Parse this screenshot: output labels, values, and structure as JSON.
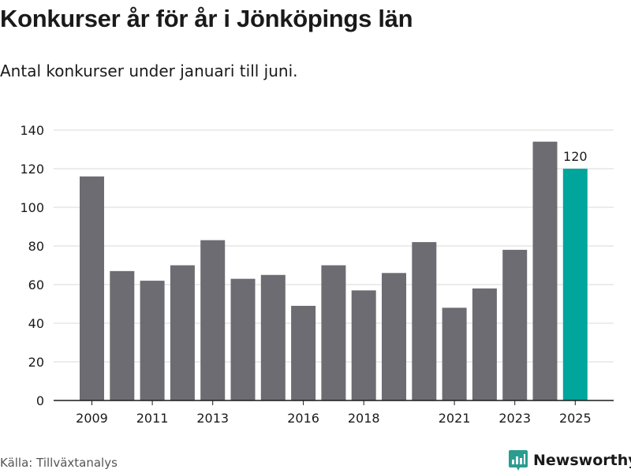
{
  "header": {
    "title": "Konkurser år för år i Jönköpings län",
    "subtitle": "Antal konkurser under januari till juni."
  },
  "footer": {
    "source": "Källa: Tillväxtanalys",
    "brand": "Newsworthy"
  },
  "colors": {
    "bar": "#6d6c72",
    "highlight": "#00a69c",
    "grid": "#d9d9d9",
    "axis": "#1a1a1a",
    "brand": "#2a9d8f"
  },
  "chart_data": {
    "type": "bar",
    "categories": [
      2009,
      2010,
      2011,
      2012,
      2013,
      2014,
      2015,
      2016,
      2017,
      2018,
      2019,
      2020,
      2021,
      2022,
      2023,
      2024,
      2025
    ],
    "values": [
      116,
      67,
      62,
      70,
      83,
      63,
      65,
      49,
      70,
      57,
      66,
      82,
      48,
      58,
      78,
      134,
      120
    ],
    "highlight_category": 2025,
    "x_tick_labels": [
      "2009",
      "2011",
      "2013",
      "2016",
      "2018",
      "2021",
      "2023",
      "2025"
    ],
    "y_ticks": [
      0,
      20,
      40,
      60,
      80,
      100,
      120,
      140
    ],
    "ylim": [
      0,
      140
    ],
    "data_labels": [
      {
        "category": 2025,
        "text": "120"
      }
    ],
    "grid": true,
    "title": "Konkurser år för år i Jönköpings län",
    "subtitle": "Antal konkurser under januari till juni.",
    "xlabel": "",
    "ylabel": ""
  }
}
